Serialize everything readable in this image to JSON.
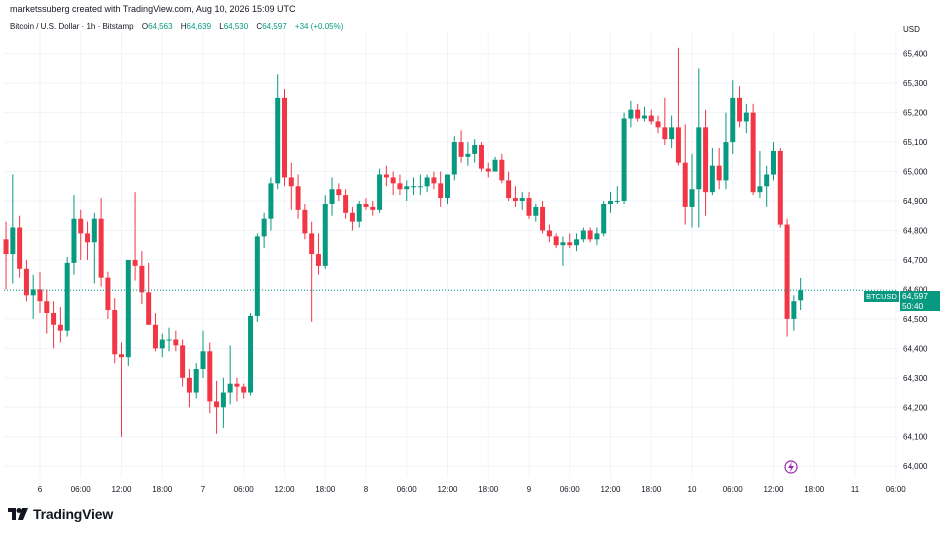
{
  "creator": "marketssuberg created with TradingView.com, Aug 10, 2026 15:09 UTC",
  "legend": {
    "symbol": "Bitcoin / U.S. Dollar · 1h · Bitstamp",
    "o_label": "O",
    "o": "64,563",
    "h_label": "H",
    "h": "64,639",
    "l_label": "L",
    "l": "64,530",
    "c_label": "C",
    "c": "64,597",
    "change": "+34 (+0.05%)"
  },
  "currency": "USD",
  "price_tag": {
    "symbol": "BTCUSD",
    "price": "64,597",
    "countdown": "50:40"
  },
  "logo_text": "TradingView",
  "colors": {
    "up": "#089981",
    "down": "#f23645",
    "grid": "#f0f3fa",
    "last": "#089981"
  },
  "chart_data": {
    "type": "candlestick",
    "ylim": [
      63960,
      65460
    ],
    "y_ticks": [
      "65,400",
      "65,300",
      "65,200",
      "65,100",
      "65,000",
      "64,900",
      "64,800",
      "64,700",
      "64,600",
      "64,500",
      "64,400",
      "64,300",
      "64,200",
      "64,100",
      "64,000"
    ],
    "y_tick_values": [
      65400,
      65300,
      65200,
      65100,
      65000,
      64900,
      64800,
      64700,
      64600,
      64500,
      64400,
      64300,
      64200,
      64100,
      64000
    ],
    "x_ticks": [
      "6",
      "06:00",
      "12:00",
      "18:00",
      "7",
      "06:00",
      "12:00",
      "18:00",
      "8",
      "06:00",
      "12:00",
      "18:00",
      "9",
      "06:00",
      "12:00",
      "18:00",
      "10",
      "06:00",
      "12:00",
      "18:00",
      "11",
      "06:00"
    ],
    "x_tick_hours": [
      0,
      6,
      12,
      18,
      24,
      30,
      36,
      42,
      48,
      54,
      60,
      66,
      72,
      78,
      84,
      90,
      96,
      102,
      108,
      114,
      120,
      126
    ],
    "first_candle_hour": -5,
    "last_price": 64597,
    "candles": [
      {
        "o": 64770,
        "h": 64830,
        "l": 64600,
        "c": 64720
      },
      {
        "o": 64720,
        "h": 64990,
        "l": 64620,
        "c": 64810
      },
      {
        "o": 64810,
        "h": 64850,
        "l": 64640,
        "c": 64670
      },
      {
        "o": 64670,
        "h": 64700,
        "l": 64560,
        "c": 64580
      },
      {
        "o": 64580,
        "h": 64650,
        "l": 64500,
        "c": 64600
      },
      {
        "o": 64600,
        "h": 64660,
        "l": 64520,
        "c": 64560
      },
      {
        "o": 64560,
        "h": 64600,
        "l": 64450,
        "c": 64520
      },
      {
        "o": 64520,
        "h": 64560,
        "l": 64400,
        "c": 64480
      },
      {
        "o": 64480,
        "h": 64540,
        "l": 64420,
        "c": 64460
      },
      {
        "o": 64460,
        "h": 64710,
        "l": 64440,
        "c": 64690
      },
      {
        "o": 64690,
        "h": 64920,
        "l": 64650,
        "c": 64840
      },
      {
        "o": 64840,
        "h": 64870,
        "l": 64700,
        "c": 64790
      },
      {
        "o": 64790,
        "h": 64830,
        "l": 64700,
        "c": 64760
      },
      {
        "o": 64760,
        "h": 64860,
        "l": 64620,
        "c": 64840
      },
      {
        "o": 64840,
        "h": 64910,
        "l": 64610,
        "c": 64640
      },
      {
        "o": 64640,
        "h": 64660,
        "l": 64500,
        "c": 64530
      },
      {
        "o": 64530,
        "h": 64570,
        "l": 64350,
        "c": 64380
      },
      {
        "o": 64380,
        "h": 64420,
        "l": 64100,
        "c": 64370
      },
      {
        "o": 64370,
        "h": 64700,
        "l": 64340,
        "c": 64700
      },
      {
        "o": 64700,
        "h": 64930,
        "l": 64630,
        "c": 64680
      },
      {
        "o": 64680,
        "h": 64730,
        "l": 64550,
        "c": 64590
      },
      {
        "o": 64590,
        "h": 64690,
        "l": 64480,
        "c": 64480
      },
      {
        "o": 64480,
        "h": 64520,
        "l": 64390,
        "c": 64400
      },
      {
        "o": 64400,
        "h": 64450,
        "l": 64370,
        "c": 64430
      },
      {
        "o": 64430,
        "h": 64470,
        "l": 64390,
        "c": 64430
      },
      {
        "o": 64430,
        "h": 64460,
        "l": 64390,
        "c": 64410
      },
      {
        "o": 64410,
        "h": 64430,
        "l": 64270,
        "c": 64300
      },
      {
        "o": 64300,
        "h": 64330,
        "l": 64200,
        "c": 64250
      },
      {
        "o": 64250,
        "h": 64350,
        "l": 64230,
        "c": 64330
      },
      {
        "o": 64330,
        "h": 64460,
        "l": 64300,
        "c": 64390
      },
      {
        "o": 64390,
        "h": 64420,
        "l": 64180,
        "c": 64220
      },
      {
        "o": 64220,
        "h": 64290,
        "l": 64110,
        "c": 64200
      },
      {
        "o": 64200,
        "h": 64300,
        "l": 64130,
        "c": 64250
      },
      {
        "o": 64250,
        "h": 64410,
        "l": 64210,
        "c": 64280
      },
      {
        "o": 64280,
        "h": 64300,
        "l": 64220,
        "c": 64270
      },
      {
        "o": 64270,
        "h": 64280,
        "l": 64230,
        "c": 64250
      },
      {
        "o": 64250,
        "h": 64520,
        "l": 64240,
        "c": 64510
      },
      {
        "o": 64510,
        "h": 64790,
        "l": 64490,
        "c": 64780
      },
      {
        "o": 64780,
        "h": 64860,
        "l": 64740,
        "c": 64840
      },
      {
        "o": 64840,
        "h": 64980,
        "l": 64800,
        "c": 64960
      },
      {
        "o": 64960,
        "h": 65330,
        "l": 64940,
        "c": 65250
      },
      {
        "o": 65250,
        "h": 65280,
        "l": 64950,
        "c": 64980
      },
      {
        "o": 64980,
        "h": 65030,
        "l": 64870,
        "c": 64950
      },
      {
        "o": 64950,
        "h": 64990,
        "l": 64840,
        "c": 64870
      },
      {
        "o": 64870,
        "h": 64890,
        "l": 64770,
        "c": 64790
      },
      {
        "o": 64790,
        "h": 64830,
        "l": 64490,
        "c": 64720
      },
      {
        "o": 64720,
        "h": 64790,
        "l": 64650,
        "c": 64680
      },
      {
        "o": 64680,
        "h": 64920,
        "l": 64670,
        "c": 64890
      },
      {
        "o": 64890,
        "h": 64980,
        "l": 64850,
        "c": 64940
      },
      {
        "o": 64940,
        "h": 64960,
        "l": 64900,
        "c": 64920
      },
      {
        "o": 64920,
        "h": 64940,
        "l": 64840,
        "c": 64860
      },
      {
        "o": 64860,
        "h": 64880,
        "l": 64800,
        "c": 64830
      },
      {
        "o": 64830,
        "h": 64900,
        "l": 64810,
        "c": 64890
      },
      {
        "o": 64890,
        "h": 64910,
        "l": 64870,
        "c": 64880
      },
      {
        "o": 64880,
        "h": 64900,
        "l": 64850,
        "c": 64870
      },
      {
        "o": 64870,
        "h": 65010,
        "l": 64860,
        "c": 64990
      },
      {
        "o": 64990,
        "h": 65020,
        "l": 64950,
        "c": 64980
      },
      {
        "o": 64980,
        "h": 65000,
        "l": 64920,
        "c": 64960
      },
      {
        "o": 64960,
        "h": 64990,
        "l": 64920,
        "c": 64940
      },
      {
        "o": 64940,
        "h": 64970,
        "l": 64900,
        "c": 64950
      },
      {
        "o": 64950,
        "h": 64980,
        "l": 64920,
        "c": 64950
      },
      {
        "o": 64950,
        "h": 64990,
        "l": 64920,
        "c": 64950
      },
      {
        "o": 64950,
        "h": 64990,
        "l": 64930,
        "c": 64980
      },
      {
        "o": 64980,
        "h": 65000,
        "l": 64940,
        "c": 64960
      },
      {
        "o": 64960,
        "h": 65000,
        "l": 64880,
        "c": 64910
      },
      {
        "o": 64910,
        "h": 64990,
        "l": 64890,
        "c": 64990
      },
      {
        "o": 64990,
        "h": 65120,
        "l": 64970,
        "c": 65100
      },
      {
        "o": 65100,
        "h": 65140,
        "l": 65030,
        "c": 65050
      },
      {
        "o": 65050,
        "h": 65100,
        "l": 65020,
        "c": 65060
      },
      {
        "o": 65060,
        "h": 65110,
        "l": 65030,
        "c": 65090
      },
      {
        "o": 65090,
        "h": 65100,
        "l": 65000,
        "c": 65010
      },
      {
        "o": 65010,
        "h": 65030,
        "l": 64980,
        "c": 65000
      },
      {
        "o": 65000,
        "h": 65050,
        "l": 65000,
        "c": 65040
      },
      {
        "o": 65040,
        "h": 65060,
        "l": 64960,
        "c": 64970
      },
      {
        "o": 64970,
        "h": 65000,
        "l": 64900,
        "c": 64910
      },
      {
        "o": 64910,
        "h": 64950,
        "l": 64880,
        "c": 64900
      },
      {
        "o": 64900,
        "h": 64930,
        "l": 64870,
        "c": 64910
      },
      {
        "o": 64910,
        "h": 64930,
        "l": 64840,
        "c": 64850
      },
      {
        "o": 64850,
        "h": 64890,
        "l": 64830,
        "c": 64880
      },
      {
        "o": 64880,
        "h": 64900,
        "l": 64790,
        "c": 64800
      },
      {
        "o": 64800,
        "h": 64820,
        "l": 64760,
        "c": 64780
      },
      {
        "o": 64780,
        "h": 64790,
        "l": 64740,
        "c": 64750
      },
      {
        "o": 64750,
        "h": 64780,
        "l": 64680,
        "c": 64760
      },
      {
        "o": 64760,
        "h": 64790,
        "l": 64740,
        "c": 64750
      },
      {
        "o": 64750,
        "h": 64790,
        "l": 64730,
        "c": 64770
      },
      {
        "o": 64770,
        "h": 64810,
        "l": 64760,
        "c": 64800
      },
      {
        "o": 64800,
        "h": 64810,
        "l": 64760,
        "c": 64770
      },
      {
        "o": 64770,
        "h": 64810,
        "l": 64750,
        "c": 64790
      },
      {
        "o": 64790,
        "h": 64900,
        "l": 64780,
        "c": 64890
      },
      {
        "o": 64890,
        "h": 64930,
        "l": 64860,
        "c": 64900
      },
      {
        "o": 64900,
        "h": 64950,
        "l": 64890,
        "c": 64900
      },
      {
        "o": 64900,
        "h": 65200,
        "l": 64890,
        "c": 65180
      },
      {
        "o": 65180,
        "h": 65240,
        "l": 65150,
        "c": 65210
      },
      {
        "o": 65210,
        "h": 65230,
        "l": 65170,
        "c": 65180
      },
      {
        "o": 65180,
        "h": 65220,
        "l": 65170,
        "c": 65190
      },
      {
        "o": 65190,
        "h": 65210,
        "l": 65160,
        "c": 65170
      },
      {
        "o": 65170,
        "h": 65190,
        "l": 65130,
        "c": 65150
      },
      {
        "o": 65150,
        "h": 65250,
        "l": 65090,
        "c": 65110
      },
      {
        "o": 65110,
        "h": 65190,
        "l": 65080,
        "c": 65150
      },
      {
        "o": 65150,
        "h": 65420,
        "l": 65020,
        "c": 65030
      },
      {
        "o": 65030,
        "h": 65160,
        "l": 64820,
        "c": 64880
      },
      {
        "o": 64880,
        "h": 65060,
        "l": 64810,
        "c": 64940
      },
      {
        "o": 64940,
        "h": 65350,
        "l": 64810,
        "c": 65150
      },
      {
        "o": 65150,
        "h": 65210,
        "l": 64850,
        "c": 64930
      },
      {
        "o": 64930,
        "h": 65080,
        "l": 64920,
        "c": 65020
      },
      {
        "o": 65020,
        "h": 65080,
        "l": 64940,
        "c": 64970
      },
      {
        "o": 64970,
        "h": 65200,
        "l": 64940,
        "c": 65100
      },
      {
        "o": 65100,
        "h": 65310,
        "l": 65060,
        "c": 65250
      },
      {
        "o": 65250,
        "h": 65290,
        "l": 65150,
        "c": 65170
      },
      {
        "o": 65170,
        "h": 65230,
        "l": 65130,
        "c": 65200
      },
      {
        "o": 65200,
        "h": 65230,
        "l": 64920,
        "c": 64930
      },
      {
        "o": 64930,
        "h": 65070,
        "l": 64910,
        "c": 64950
      },
      {
        "o": 64950,
        "h": 65020,
        "l": 64880,
        "c": 64990
      },
      {
        "o": 64990,
        "h": 65100,
        "l": 64970,
        "c": 65070
      },
      {
        "o": 65070,
        "h": 65080,
        "l": 64810,
        "c": 64820
      },
      {
        "o": 64820,
        "h": 64840,
        "l": 64440,
        "c": 64500
      },
      {
        "o": 64500,
        "h": 64580,
        "l": 64460,
        "c": 64560
      },
      {
        "o": 64563,
        "h": 64639,
        "l": 64530,
        "c": 64597
      }
    ]
  }
}
